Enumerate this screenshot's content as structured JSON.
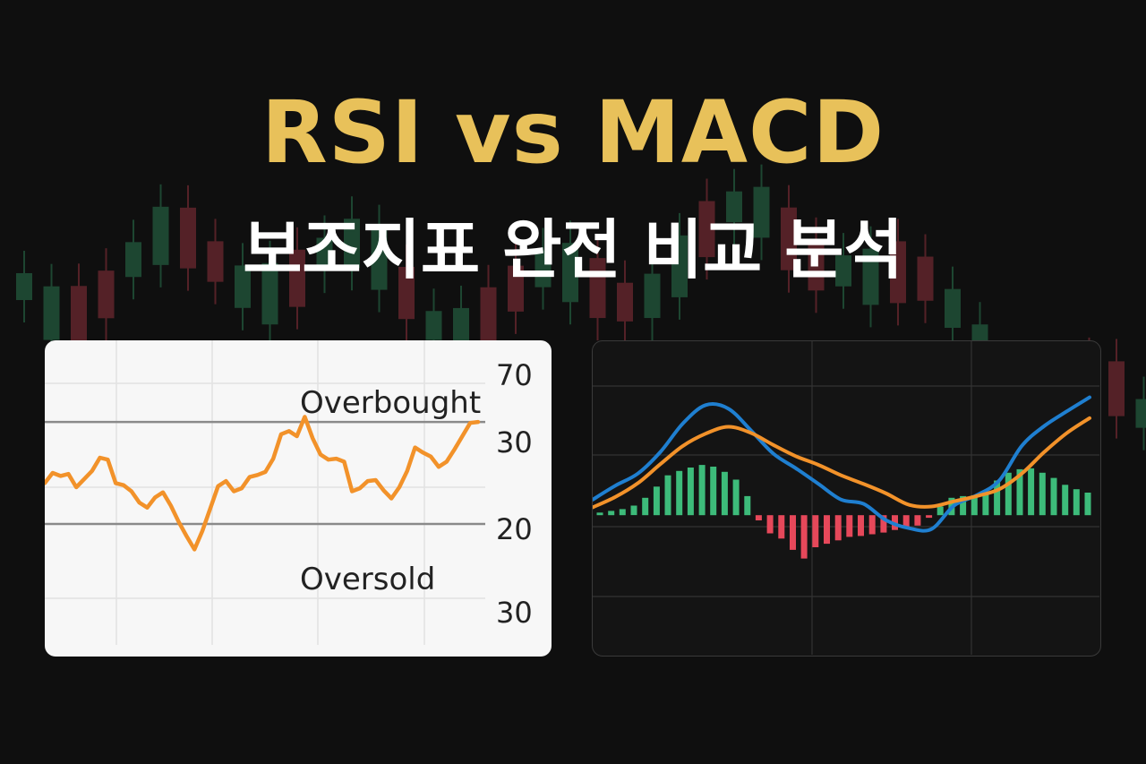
{
  "header": {
    "title": "RSI vs MACD",
    "subtitle": "보조지표 완전 비교 분석"
  },
  "colors": {
    "background": "#0f0f0f",
    "title": "#e8c15a",
    "subtitle": "#ffffff",
    "rsi_line": "#f2922a",
    "macd_line": "#1f7fd0",
    "signal_line": "#f2922a",
    "hist_positive": "#3dbb7a",
    "hist_negative": "#e6485a",
    "candle_up": "#3dbb7a",
    "candle_down": "#e6485a"
  },
  "chart_data": [
    {
      "type": "line",
      "name": "rsi",
      "tick_labels": [
        "70",
        "30",
        "20",
        "30"
      ],
      "annotations": [
        "Overbought",
        "Oversold"
      ],
      "reference_lines": [
        30,
        20
      ],
      "ylim": [
        7,
        38
      ],
      "grid": true,
      "series": [
        {
          "values": [
            24,
            25,
            24.7,
            24.9,
            23.6,
            24.4,
            25.2,
            26.5,
            26.3,
            24,
            23.8,
            23.2,
            22.1,
            21.6,
            22.6,
            23.1,
            21.8,
            20.2,
            18.8,
            17.5,
            19.3,
            21.5,
            23.7,
            24.2,
            23.2,
            23.5,
            24.6,
            24.8,
            25.1,
            26.4,
            28.8,
            29.1,
            28.6,
            30.5,
            28.4,
            26.8,
            26.3,
            26.4,
            26.1,
            23.2,
            23.5,
            24.2,
            24.3,
            23.3,
            22.5,
            23.6,
            25.2,
            27.5,
            27,
            26.6,
            25.6,
            26.1,
            27.3,
            28.6,
            29.9,
            30
          ]
        }
      ]
    },
    {
      "type": "line",
      "name": "macd",
      "grid": true,
      "ylim": [
        -1.3,
        1.8
      ],
      "series": [
        {
          "values": [
            0.18,
            0.34,
            0.48,
            0.73,
            1.06,
            1.27,
            1.23,
            0.98,
            0.71,
            0.54,
            0.36,
            0.18,
            0.13,
            -0.06,
            -0.15,
            -0.16,
            0.11,
            0.23,
            0.4,
            0.8,
            1.03,
            1.2,
            1.36
          ]
        },
        {
          "values": [
            0.09,
            0.21,
            0.37,
            0.59,
            0.8,
            0.94,
            1.02,
            0.95,
            0.81,
            0.68,
            0.58,
            0.46,
            0.36,
            0.25,
            0.12,
            0.1,
            0.16,
            0.22,
            0.3,
            0.48,
            0.73,
            0.95,
            1.12
          ]
        }
      ],
      "histogram": [
        0.03,
        0.05,
        0.07,
        0.11,
        0.2,
        0.33,
        0.46,
        0.51,
        0.55,
        0.58,
        0.56,
        0.5,
        0.41,
        0.22,
        -0.06,
        -0.21,
        -0.27,
        -0.4,
        -0.5,
        -0.37,
        -0.33,
        -0.29,
        -0.25,
        -0.24,
        -0.22,
        -0.2,
        -0.17,
        -0.14,
        -0.12,
        -0.03,
        0.1,
        0.2,
        0.22,
        0.23,
        0.27,
        0.4,
        0.49,
        0.53,
        0.54,
        0.49,
        0.43,
        0.35,
        0.3,
        0.26
      ]
    }
  ]
}
